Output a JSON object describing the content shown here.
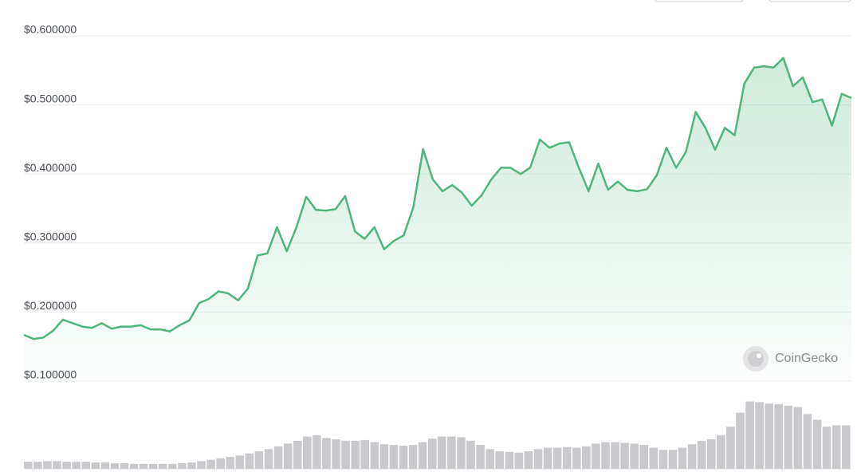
{
  "chart_data": {
    "type": "area",
    "watermark": "CoinGecko",
    "color": "#4fb57c",
    "ylim": [
      0.1,
      0.6
    ],
    "yticks": [
      {
        "value": 0.6,
        "label": "$0.600000"
      },
      {
        "value": 0.5,
        "label": "$0.500000"
      },
      {
        "value": 0.4,
        "label": "$0.400000"
      },
      {
        "value": 0.3,
        "label": "$0.300000"
      },
      {
        "value": 0.2,
        "label": "$0.200000"
      },
      {
        "value": 0.1,
        "label": "$0.100000"
      }
    ],
    "grid": true,
    "values": [
      0.167,
      0.161,
      0.163,
      0.173,
      0.189,
      0.184,
      0.179,
      0.177,
      0.184,
      0.176,
      0.179,
      0.179,
      0.181,
      0.175,
      0.175,
      0.172,
      0.181,
      0.188,
      0.213,
      0.219,
      0.23,
      0.227,
      0.217,
      0.234,
      0.282,
      0.285,
      0.323,
      0.288,
      0.323,
      0.367,
      0.348,
      0.347,
      0.349,
      0.368,
      0.317,
      0.306,
      0.323,
      0.291,
      0.303,
      0.311,
      0.352,
      0.436,
      0.392,
      0.375,
      0.384,
      0.373,
      0.354,
      0.369,
      0.392,
      0.409,
      0.409,
      0.4,
      0.409,
      0.45,
      0.438,
      0.444,
      0.446,
      0.409,
      0.375,
      0.415,
      0.377,
      0.389,
      0.377,
      0.375,
      0.378,
      0.398,
      0.438,
      0.409,
      0.432,
      0.49,
      0.467,
      0.435,
      0.467,
      0.456,
      0.531,
      0.554,
      0.556,
      0.554,
      0.568,
      0.527,
      0.54,
      0.504,
      0.508,
      0.47,
      0.516,
      0.51
    ],
    "volume_color": "#c9c9cd",
    "volume_ylim": [
      0,
      100
    ],
    "volume": [
      10,
      10,
      11,
      11,
      10,
      10,
      10,
      9,
      9,
      8,
      8,
      7,
      7,
      7,
      7,
      7,
      8,
      9,
      11,
      13,
      15,
      17,
      19,
      22,
      25,
      28,
      32,
      36,
      40,
      46,
      48,
      44,
      42,
      40,
      40,
      41,
      38,
      35,
      34,
      33,
      34,
      38,
      43,
      46,
      46,
      45,
      40,
      34,
      28,
      25,
      24,
      23,
      25,
      28,
      30,
      30,
      31,
      30,
      32,
      36,
      38,
      38,
      37,
      36,
      34,
      30,
      27,
      27,
      30,
      35,
      40,
      42,
      48,
      60,
      80,
      96,
      95,
      93,
      92,
      90,
      88,
      78,
      70,
      60,
      62,
      62
    ]
  }
}
